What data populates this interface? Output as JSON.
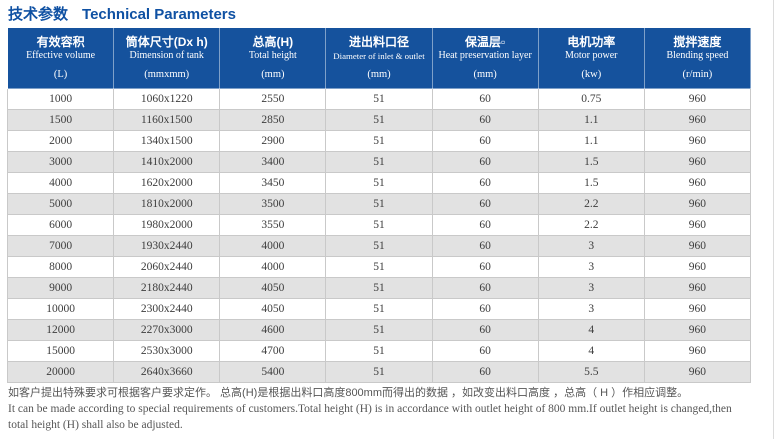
{
  "page": {
    "title_cn": "技术参数",
    "title_en": "Technical Parameters"
  },
  "table": {
    "columns": [
      {
        "cn": "有效容积",
        "en": "Effective volume",
        "unit": "(L)"
      },
      {
        "cn": "筒体尺寸(Dx h)",
        "en": "Dimension of tank",
        "unit": "(mmxmm)"
      },
      {
        "cn": "总高(H)",
        "en": "Total height",
        "unit": "(mm)"
      },
      {
        "cn": "进出料口径",
        "en": "Diameter of inlet & outlet",
        "unit": "(mm)"
      },
      {
        "cn": "保温层▫",
        "en": "Heat preservation layer",
        "unit": "(mm)"
      },
      {
        "cn": "电机功率",
        "en": "Motor power",
        "unit": "(kw)"
      },
      {
        "cn": "搅拌速度",
        "en": "Blending speed",
        "unit": "(r/min)"
      }
    ],
    "rows": [
      [
        "1000",
        "1060x1220",
        "2550",
        "51",
        "60",
        "0.75",
        "960"
      ],
      [
        "1500",
        "1160x1500",
        "2850",
        "51",
        "60",
        "1.1",
        "960"
      ],
      [
        "2000",
        "1340x1500",
        "2900",
        "51",
        "60",
        "1.1",
        "960"
      ],
      [
        "3000",
        "1410x2000",
        "3400",
        "51",
        "60",
        "1.5",
        "960"
      ],
      [
        "4000",
        "1620x2000",
        "3450",
        "51",
        "60",
        "1.5",
        "960"
      ],
      [
        "5000",
        "1810x2000",
        "3500",
        "51",
        "60",
        "2.2",
        "960"
      ],
      [
        "6000",
        "1980x2000",
        "3550",
        "51",
        "60",
        "2.2",
        "960"
      ],
      [
        "7000",
        "1930x2440",
        "4000",
        "51",
        "60",
        "3",
        "960"
      ],
      [
        "8000",
        "2060x2440",
        "4000",
        "51",
        "60",
        "3",
        "960"
      ],
      [
        "9000",
        "2180x2440",
        "4050",
        "51",
        "60",
        "3",
        "960"
      ],
      [
        "10000",
        "2300x2440",
        "4050",
        "51",
        "60",
        "3",
        "960"
      ],
      [
        "12000",
        "2270x3000",
        "4600",
        "51",
        "60",
        "4",
        "960"
      ],
      [
        "15000",
        "2530x3000",
        "4700",
        "51",
        "60",
        "4",
        "960"
      ],
      [
        "20000",
        "2640x3660",
        "5400",
        "51",
        "60",
        "5.5",
        "960"
      ]
    ]
  },
  "footer": {
    "line1_cn": "如客户提出特殊要求可根据客户要求定作。 总高(H)是根据出料口高度800mm而得出的数据 ，如改变出料口高度 ，总高（ H ）作相应调整。",
    "line2_en": "It can be made according to special requirements of customers.Total height (H) is in accordance with outlet height of 800 mm.If outlet height is changed,then",
    "line3_en": "total height (H) shall also be adjusted."
  },
  "colors": {
    "header_bg": "#15529d",
    "title_text": "#0f51a3",
    "row_alt": "#e2e2e2",
    "border": "#c9c9c9"
  }
}
